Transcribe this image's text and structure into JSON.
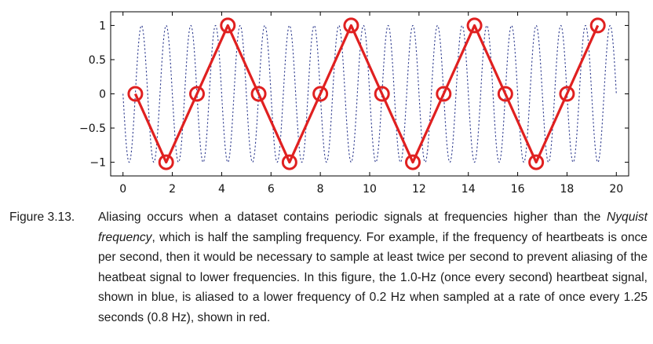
{
  "chart_data": {
    "type": "line",
    "xlim": [
      -0.5,
      20.5
    ],
    "ylim": [
      -1.2,
      1.2
    ],
    "xticks": [
      "0",
      "2",
      "4",
      "6",
      "8",
      "10",
      "12",
      "14",
      "16",
      "18",
      "20"
    ],
    "xtick_values": [
      0,
      2,
      4,
      6,
      8,
      10,
      12,
      14,
      16,
      18,
      20
    ],
    "yticks": [
      "1",
      "0.5",
      "0",
      "−0.5",
      "−1"
    ],
    "ytick_values": [
      1,
      0.5,
      0,
      -0.5,
      -1
    ],
    "grid": false,
    "series": [
      {
        "style": "dotted",
        "color": "#2f3c8f",
        "frequency_hz": 1.0,
        "x_range": [
          0,
          20
        ]
      },
      {
        "style": "solid-with-circle-markers",
        "color": "#e02020",
        "x": [
          0.5,
          1.75,
          3.0,
          4.25,
          5.5,
          6.75,
          8.0,
          9.25,
          10.5,
          11.75,
          13.0,
          14.25,
          15.5,
          16.75,
          18.0,
          19.25
        ],
        "y": [
          0,
          -1,
          0,
          1,
          0,
          -1,
          0,
          1,
          0,
          -1,
          0,
          1,
          0,
          -1,
          0,
          1
        ]
      }
    ]
  },
  "caption": {
    "label": "Figure 3.13.",
    "text_1": "Aliasing occurs when a dataset contains periodic signals at frequencies higher than the ",
    "emphasis": "Nyquist frequency",
    "text_2": ", which is half the sampling frequency. For example, if the frequency of heartbeats is once per second, then it would be necessary to sample at least twice per second to prevent aliasing of the heatbeat signal to lower frequencies. In this figure, the 1.0-Hz (once every second) heartbeat signal, shown in blue, is aliased to a lower frequency of 0.2 Hz when sampled at a rate of once every 1.25 seconds (0.8 Hz), shown in red."
  }
}
